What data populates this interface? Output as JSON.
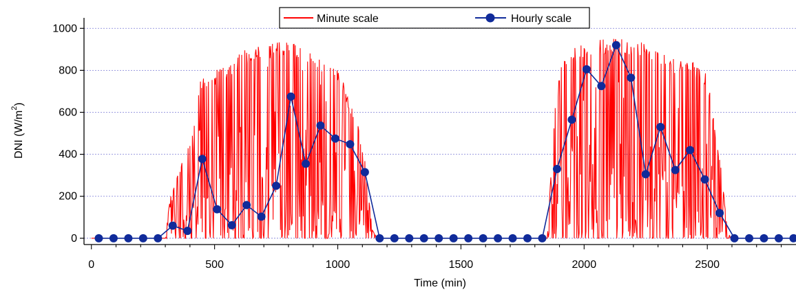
{
  "chart_data": {
    "type": "line",
    "xlabel": "Time (min)",
    "ylabel": "DNI (W/m²)",
    "ylabel_parts": {
      "base": "DNI (W/m",
      "sup": "2",
      "end": ")"
    },
    "xlim": [
      -30,
      2860
    ],
    "ylim": [
      -30,
      1050
    ],
    "xticks": [
      0,
      500,
      1000,
      1500,
      2000,
      2500
    ],
    "xtick_labels": [
      "0",
      "500",
      "1000",
      "1500",
      "2000",
      "2500"
    ],
    "yticks": [
      0,
      200,
      400,
      600,
      800,
      1000
    ],
    "ytick_labels": [
      "0",
      "200",
      "400",
      "600",
      "800",
      "1000"
    ],
    "grid": "horizontal dashed",
    "legend": "top-center",
    "series": [
      {
        "name": "Minute scale",
        "color": "#ff0000",
        "style": "line",
        "envelope": [
          [
            0,
            0
          ],
          [
            300,
            0
          ],
          [
            320,
            200
          ],
          [
            360,
            340
          ],
          [
            410,
            500
          ],
          [
            440,
            780
          ],
          [
            470,
            770
          ],
          [
            500,
            800
          ],
          [
            560,
            830
          ],
          [
            620,
            900
          ],
          [
            680,
            920
          ],
          [
            740,
            930
          ],
          [
            800,
            950
          ],
          [
            860,
            900
          ],
          [
            920,
            860
          ],
          [
            980,
            840
          ],
          [
            1020,
            760
          ],
          [
            1050,
            650
          ],
          [
            1080,
            560
          ],
          [
            1110,
            380
          ],
          [
            1140,
            40
          ],
          [
            1160,
            0
          ],
          [
            1850,
            0
          ],
          [
            1880,
            600
          ],
          [
            1910,
            860
          ],
          [
            1960,
            910
          ],
          [
            2020,
            940
          ],
          [
            2080,
            950
          ],
          [
            2140,
            960
          ],
          [
            2200,
            950
          ],
          [
            2260,
            920
          ],
          [
            2320,
            890
          ],
          [
            2380,
            870
          ],
          [
            2440,
            840
          ],
          [
            2500,
            780
          ],
          [
            2560,
            300
          ],
          [
            2580,
            50
          ],
          [
            2600,
            0
          ],
          [
            2860,
            0
          ]
        ]
      },
      {
        "name": "Hourly scale",
        "color": "#102b9a",
        "style": "line-marker",
        "x": [
          30,
          90,
          150,
          210,
          270,
          330,
          390,
          450,
          510,
          570,
          630,
          690,
          750,
          810,
          870,
          930,
          990,
          1050,
          1110,
          1170,
          1230,
          1290,
          1350,
          1410,
          1470,
          1530,
          1590,
          1650,
          1710,
          1770,
          1830,
          1890,
          1950,
          2010,
          2070,
          2130,
          2190,
          2250,
          2310,
          2370,
          2430,
          2490,
          2550,
          2610,
          2670,
          2730,
          2790,
          2850
        ],
        "y": [
          0,
          0,
          0,
          0,
          0,
          60,
          35,
          378,
          138,
          62,
          158,
          103,
          250,
          675,
          355,
          537,
          475,
          448,
          315,
          0,
          0,
          0,
          0,
          0,
          0,
          0,
          0,
          0,
          0,
          0,
          0,
          330,
          565,
          805,
          725,
          920,
          765,
          305,
          530,
          325,
          420,
          280,
          120,
          0,
          0,
          0,
          0,
          0
        ]
      }
    ]
  }
}
